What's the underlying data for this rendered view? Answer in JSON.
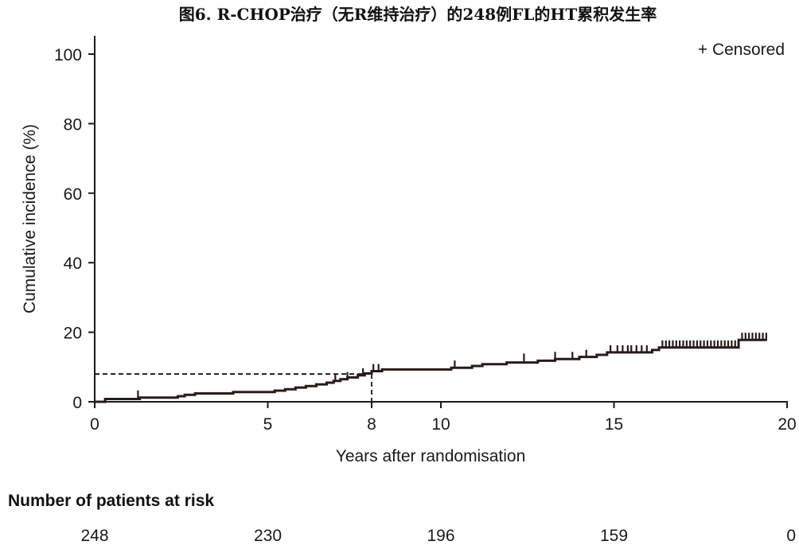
{
  "chart_data": {
    "type": "line",
    "title": "图6. R-CHOP治疗（无R维持治疗）的248例FL的HT累积发生率",
    "xlabel": "Years after randomisation",
    "ylabel": "Cumulative incidence (%)",
    "xlim": [
      0,
      20
    ],
    "ylim": [
      0,
      100
    ],
    "xticks": [
      "0",
      "5",
      "8",
      "10",
      "15",
      "20"
    ],
    "yticks": [
      "0",
      "20",
      "40",
      "60",
      "80",
      "100"
    ],
    "legend": "+ Censored",
    "legend_position": "top-right",
    "grid": false,
    "line_color": "#2a1a1a",
    "reference": {
      "x": 8,
      "y": 8
    },
    "series": [
      {
        "points": [
          [
            0,
            0
          ],
          [
            0.3,
            0
          ],
          [
            0.3,
            0.8
          ],
          [
            1.3,
            0.8
          ],
          [
            1.3,
            1.2
          ],
          [
            2.4,
            1.2
          ],
          [
            2.4,
            1.6
          ],
          [
            2.6,
            1.6
          ],
          [
            2.6,
            2.0
          ],
          [
            2.9,
            2.0
          ],
          [
            2.9,
            2.4
          ],
          [
            4.0,
            2.4
          ],
          [
            4.0,
            2.8
          ],
          [
            5.2,
            2.8
          ],
          [
            5.2,
            3.2
          ],
          [
            5.5,
            3.2
          ],
          [
            5.5,
            3.6
          ],
          [
            5.8,
            3.6
          ],
          [
            5.8,
            4.1
          ],
          [
            6.1,
            4.1
          ],
          [
            6.1,
            4.5
          ],
          [
            6.4,
            4.5
          ],
          [
            6.4,
            5.0
          ],
          [
            6.7,
            5.0
          ],
          [
            6.7,
            5.5
          ],
          [
            6.9,
            5.5
          ],
          [
            6.9,
            6.0
          ],
          [
            7.1,
            6.0
          ],
          [
            7.1,
            6.5
          ],
          [
            7.3,
            6.5
          ],
          [
            7.3,
            7.0
          ],
          [
            7.6,
            7.0
          ],
          [
            7.6,
            7.6
          ],
          [
            7.8,
            7.6
          ],
          [
            7.8,
            8.2
          ],
          [
            8.0,
            8.2
          ],
          [
            8.0,
            8.8
          ],
          [
            8.3,
            8.8
          ],
          [
            8.3,
            9.3
          ],
          [
            10.3,
            9.3
          ],
          [
            10.3,
            9.8
          ],
          [
            10.9,
            9.8
          ],
          [
            10.9,
            10.3
          ],
          [
            11.2,
            10.3
          ],
          [
            11.2,
            10.8
          ],
          [
            11.9,
            10.8
          ],
          [
            11.9,
            11.3
          ],
          [
            12.8,
            11.3
          ],
          [
            12.8,
            11.8
          ],
          [
            13.3,
            11.8
          ],
          [
            13.3,
            12.3
          ],
          [
            14.0,
            12.3
          ],
          [
            14.0,
            12.9
          ],
          [
            14.5,
            12.9
          ],
          [
            14.5,
            13.5
          ],
          [
            14.8,
            13.5
          ],
          [
            14.8,
            14.2
          ],
          [
            16.1,
            14.2
          ],
          [
            16.1,
            14.9
          ],
          [
            16.3,
            14.9
          ],
          [
            16.3,
            15.6
          ],
          [
            18.6,
            15.6
          ],
          [
            18.6,
            17.8
          ],
          [
            19.4,
            17.8
          ]
        ],
        "censored": [
          [
            1.25,
            1.2
          ],
          [
            6.95,
            6.0
          ],
          [
            7.3,
            6.5
          ],
          [
            7.75,
            7.6
          ],
          [
            8.05,
            8.8
          ],
          [
            8.2,
            8.8
          ],
          [
            10.4,
            9.8
          ],
          [
            12.4,
            11.8
          ],
          [
            13.3,
            12.3
          ],
          [
            13.8,
            12.3
          ],
          [
            14.2,
            12.9
          ],
          [
            14.9,
            14.2
          ],
          [
            15.1,
            14.2
          ],
          [
            15.25,
            14.2
          ],
          [
            15.4,
            14.2
          ],
          [
            15.5,
            14.2
          ],
          [
            15.65,
            14.2
          ],
          [
            15.8,
            14.2
          ],
          [
            15.95,
            14.2
          ],
          [
            16.4,
            15.6
          ],
          [
            16.5,
            15.6
          ],
          [
            16.6,
            15.6
          ],
          [
            16.7,
            15.6
          ],
          [
            16.8,
            15.6
          ],
          [
            16.9,
            15.6
          ],
          [
            17.0,
            15.6
          ],
          [
            17.1,
            15.6
          ],
          [
            17.2,
            15.6
          ],
          [
            17.3,
            15.6
          ],
          [
            17.4,
            15.6
          ],
          [
            17.5,
            15.6
          ],
          [
            17.6,
            15.6
          ],
          [
            17.7,
            15.6
          ],
          [
            17.8,
            15.6
          ],
          [
            17.9,
            15.6
          ],
          [
            18.0,
            15.6
          ],
          [
            18.1,
            15.6
          ],
          [
            18.2,
            15.6
          ],
          [
            18.3,
            15.6
          ],
          [
            18.4,
            15.6
          ],
          [
            18.5,
            15.6
          ],
          [
            18.7,
            17.8
          ],
          [
            18.8,
            17.8
          ],
          [
            18.9,
            17.8
          ],
          [
            19.0,
            17.8
          ],
          [
            19.1,
            17.8
          ],
          [
            19.2,
            17.8
          ],
          [
            19.3,
            17.8
          ],
          [
            19.4,
            17.8
          ]
        ]
      }
    ],
    "risk_table": {
      "heading": "Number of patients at risk",
      "rows": [
        {
          "x": 0,
          "value": "248"
        },
        {
          "x": 5,
          "value": "230"
        },
        {
          "x": 10,
          "value": "196"
        },
        {
          "x": 15,
          "value": "159"
        },
        {
          "x": 20,
          "value": "0"
        }
      ]
    }
  }
}
